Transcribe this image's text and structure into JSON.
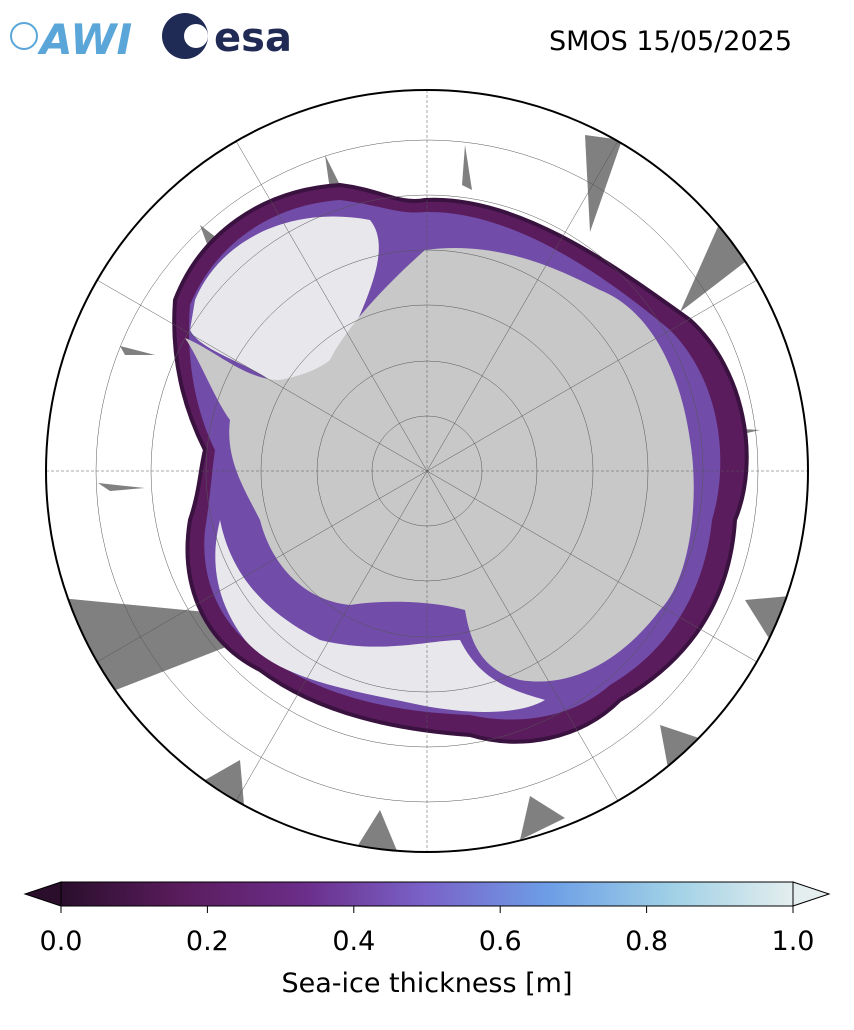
{
  "header": {
    "title": "SMOS 15/05/2025",
    "logos": [
      "AWI",
      "esa"
    ]
  },
  "colorbar": {
    "label": "Sea-ice thickness [m]",
    "lim": [
      0,
      1
    ],
    "ticks": [
      {
        "value": 0,
        "label": "0.0"
      },
      {
        "value": 0.2,
        "label": "0.2"
      },
      {
        "value": 0.4,
        "label": "0.4"
      },
      {
        "value": 0.6,
        "label": "0.6"
      },
      {
        "value": 0.8,
        "label": "0.8"
      },
      {
        "value": 1,
        "label": "1.0"
      }
    ],
    "colors": [
      "#2a0e2c",
      "#5b1c5e",
      "#6b2e8a",
      "#7a63c9",
      "#6d9ee6",
      "#9fd0e6",
      "#e4eeee"
    ]
  }
}
